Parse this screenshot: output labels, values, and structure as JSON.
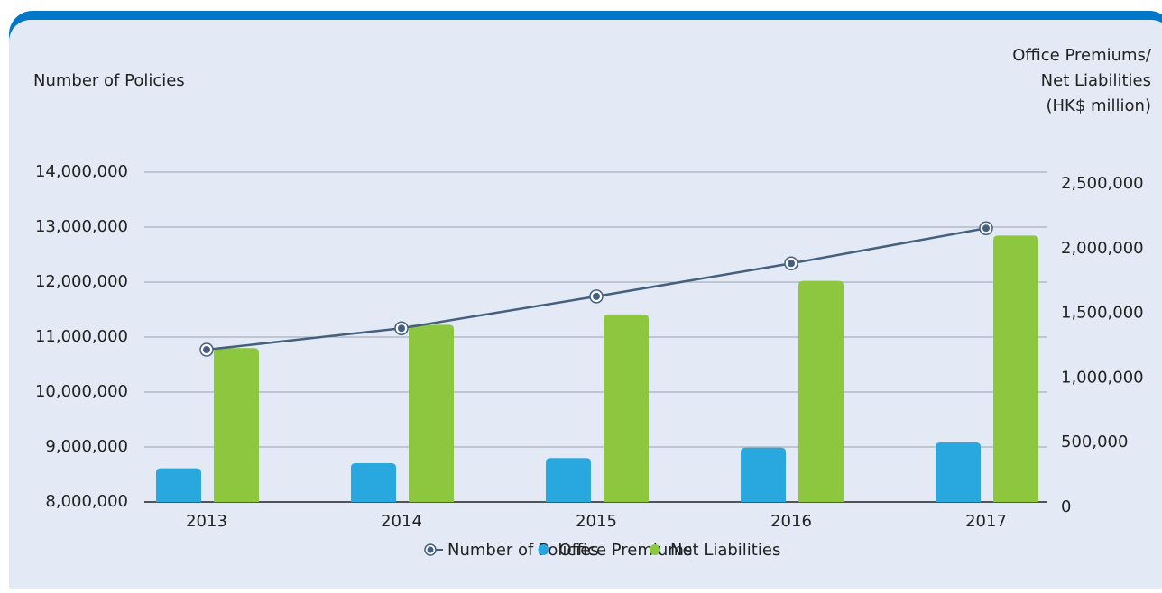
{
  "chart_data": {
    "type": "bar_line",
    "y_label": "Number of Policies",
    "y2_label": [
      "Office Premiums/",
      "Net Liabilities",
      "(HK$ million)"
    ],
    "categories": [
      "2013",
      "2014",
      "2015",
      "2016",
      "2017"
    ],
    "series": [
      {
        "name": "Number of Policies",
        "type": "line",
        "color": "#44607e",
        "axis": "y",
        "values": [
          10770000,
          11160000,
          11740000,
          12340000,
          12980000
        ]
      },
      {
        "name": "Office Premiums",
        "type": "bar",
        "color": "#29a8e0",
        "axis": "y2",
        "values": [
          260000,
          300000,
          340000,
          420000,
          460000
        ]
      },
      {
        "name": "Net Liabilities",
        "type": "bar",
        "color": "#8dc63f",
        "axis": "y2",
        "values": [
          1190000,
          1370000,
          1450000,
          1710000,
          2060000
        ]
      }
    ],
    "ylim": [
      8000000,
      14000000
    ],
    "yticks": [
      {
        "value": 8000000,
        "label": "8,000,000"
      },
      {
        "value": 9000000,
        "label": "9,000,000"
      },
      {
        "value": 10000000,
        "label": "10,000,000"
      },
      {
        "value": 11000000,
        "label": "11,000,000"
      },
      {
        "value": 12000000,
        "label": "12,000,000"
      },
      {
        "value": 13000000,
        "label": "13,000,000"
      },
      {
        "value": 14000000,
        "label": "14,000,000"
      }
    ],
    "y2lim": [
      0,
      2550000
    ],
    "y2ticks": [
      0,
      {
        "value": 500000,
        "label": "500,000"
      },
      {
        "value": 1000000,
        "label": "1,000,000"
      },
      {
        "value": 1500000,
        "label": "1,500,000"
      },
      {
        "value": 2000000,
        "label": "2,000,000"
      },
      {
        "value": 2500000,
        "label": "2,500,000"
      }
    ],
    "grid": true,
    "legend": "bottom"
  }
}
